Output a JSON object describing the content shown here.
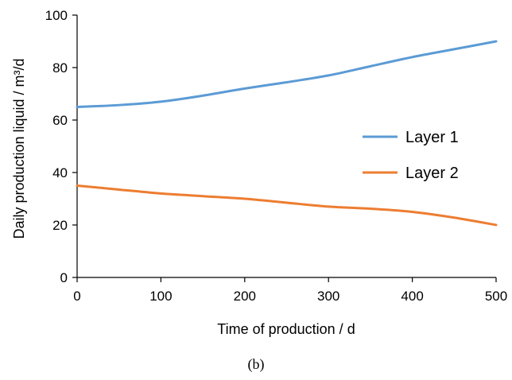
{
  "chart_data": {
    "type": "line",
    "xlabel": "Time of production / d",
    "ylabel": "Daily production liquid / m³/d",
    "xlim": [
      0,
      500
    ],
    "ylim": [
      0,
      100
    ],
    "xticks": [
      0,
      100,
      200,
      300,
      400,
      500
    ],
    "yticks": [
      0,
      20,
      40,
      60,
      80,
      100
    ],
    "grid": false,
    "legend_position": "right",
    "series": [
      {
        "name": "Layer 1",
        "color": "#5B9BD5",
        "x": [
          0,
          50,
          100,
          150,
          200,
          250,
          300,
          350,
          400,
          450,
          500
        ],
        "y": [
          65,
          65.7,
          67,
          69.3,
          72,
          74.4,
          77,
          80.5,
          84,
          87,
          90
        ]
      },
      {
        "name": "Layer 2",
        "color": "#ED7D31",
        "x": [
          0,
          50,
          100,
          150,
          200,
          250,
          300,
          350,
          400,
          450,
          500
        ],
        "y": [
          35,
          33.5,
          32,
          31,
          30,
          28.5,
          27,
          26.2,
          25,
          22.8,
          20
        ]
      }
    ]
  },
  "caption": "(b)"
}
